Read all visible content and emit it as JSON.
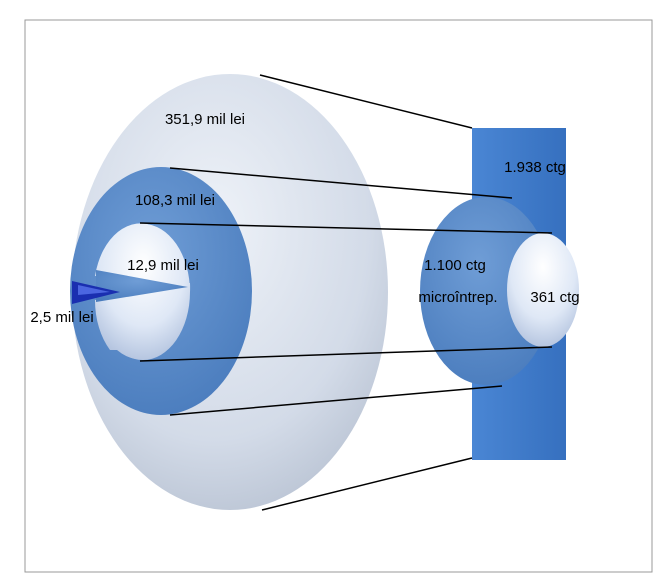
{
  "left_group": {
    "outer_label": "351,9 mil lei",
    "middle_label": "108,3 mil lei",
    "inner_label": "12,9 mil lei",
    "wedge_label": "2,5 mil lei"
  },
  "right_group": {
    "rect_label": "1.938 ctg",
    "middle_label_line1": "1.100 ctg",
    "middle_label_line2": "microîntrep.",
    "inner_label": "361 ctg"
  },
  "colors": {
    "light": "#d6deeb",
    "mid_blue": "#5a8ccb",
    "rect_blue": "#3b78c8",
    "dark_wedge": "#1a2fb0"
  }
}
